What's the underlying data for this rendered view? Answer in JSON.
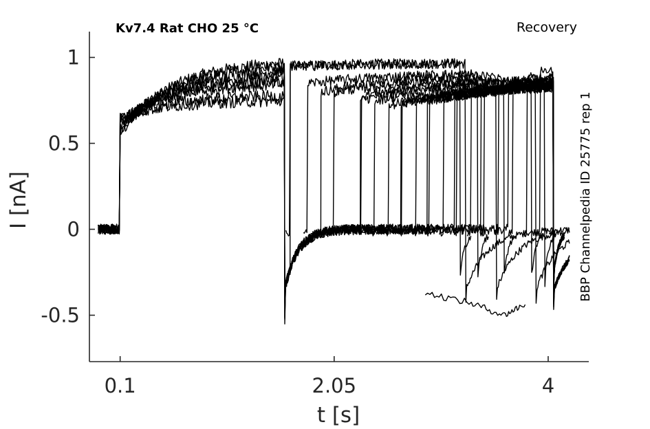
{
  "title": "Kv7.4  Rat  CHO  25 °C",
  "protocol_label": "Recovery",
  "source_label": "BBP Channelpedia ID 25775 rep 1",
  "colors": {
    "trace": "#000000",
    "axis": "#262626"
  },
  "chart_data": {
    "type": "line",
    "xlabel": "t [s]",
    "ylabel": "I [nA]",
    "xlim": [
      -0.18,
      4.37
    ],
    "ylim": [
      -0.77,
      1.15
    ],
    "xticks": [
      0.1,
      2.05,
      4
    ],
    "xtick_labels": [
      "0.1",
      "2.05",
      "4"
    ],
    "yticks": [
      -0.5,
      0,
      0.5,
      1
    ],
    "ytick_labels": [
      "-0.5",
      "0",
      "0.5",
      "1"
    ],
    "grid": false,
    "legend": "none",
    "baseline_current": 0.0,
    "prepulse_start": 0.1,
    "prepulse_end": 1.6,
    "step_currents": [
      0.98,
      0.96,
      0.93,
      0.9,
      0.87,
      0.85,
      0.78,
      0.75
    ],
    "interpulse_gaps": [
      0.05,
      0.21,
      0.45,
      0.7,
      0.82,
      0.95,
      1.07,
      1.2,
      1.32,
      1.45,
      1.57,
      1.7,
      1.82,
      1.95,
      2.08,
      2.21,
      2.33,
      2.45
    ],
    "test_pulse_current_start": [
      0.95,
      0.85,
      0.8,
      0.78,
      0.75,
      0.72,
      0.73,
      0.74,
      0.75,
      0.76,
      0.77,
      0.78,
      0.8,
      0.82,
      0.85,
      0.88,
      0.93,
      0.98
    ],
    "tail_current_min": -0.6,
    "late_trace_points": [
      [
        2.88,
        -0.37
      ],
      [
        3.3,
        -0.43
      ],
      [
        3.6,
        -0.5
      ],
      [
        3.8,
        -0.43
      ]
    ]
  }
}
